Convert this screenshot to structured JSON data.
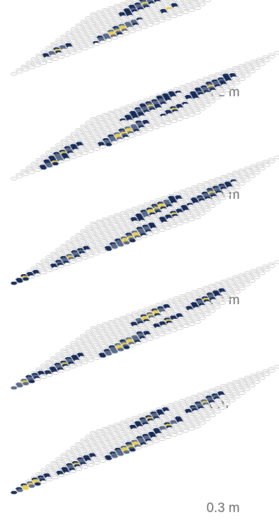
{
  "colors": {
    "empty_fill": "#ffffff",
    "empty_stroke": "#9a9a9a",
    "low": "#162a57",
    "mid": "#5b6a86",
    "high": "#e6cf5a",
    "label_text": "#666666"
  },
  "layers": [
    {
      "label": "3.1 m",
      "clusters": [
        {
          "r": 4,
          "c": 12,
          "rad": 3.0,
          "hr": 0.0,
          "mr": 1.4
        },
        {
          "r": 5,
          "c": 23,
          "rad": 3.2,
          "hr": 1.0,
          "mr": 2.0
        },
        {
          "r": 11,
          "c": 22,
          "rad": 1.3,
          "hr": 0.0,
          "mr": 0.0
        },
        {
          "r": 12,
          "c": 4,
          "rad": 1.8,
          "hr": 0.0,
          "mr": 1.0
        },
        {
          "r": 13,
          "c": 15,
          "rad": 2.8,
          "hr": 1.2,
          "mr": 2.2
        }
      ]
    },
    {
      "label": "2.4 m",
      "clusters": [
        {
          "r": 4,
          "c": 13,
          "rad": 3.4,
          "hr": 0.0,
          "mr": 1.8
        },
        {
          "r": 5,
          "c": 24,
          "rad": 3.0,
          "hr": 0.0,
          "mr": 1.5
        },
        {
          "r": 10,
          "c": 22,
          "rad": 1.6,
          "hr": 0.0,
          "mr": 0.0
        },
        {
          "r": 12,
          "c": 5,
          "rad": 2.6,
          "hr": 0.0,
          "mr": 1.2
        },
        {
          "r": 13,
          "c": 16,
          "rad": 3.0,
          "hr": 1.2,
          "mr": 2.2
        },
        {
          "r": 15,
          "c": 6,
          "rad": 2.0,
          "hr": 0.0,
          "mr": 1.0
        }
      ]
    },
    {
      "label": "1.7 m",
      "clusters": [
        {
          "r": 4,
          "c": 14,
          "rad": 3.0,
          "hr": 1.0,
          "mr": 2.0
        },
        {
          "r": 6,
          "c": 25,
          "rad": 2.8,
          "hr": 0.0,
          "mr": 1.6
        },
        {
          "r": 10,
          "c": 22,
          "rad": 2.0,
          "hr": 0.0,
          "mr": 0.0
        },
        {
          "r": 13,
          "c": 7,
          "rad": 2.6,
          "hr": 0.0,
          "mr": 1.4
        },
        {
          "r": 14,
          "c": 18,
          "rad": 3.2,
          "hr": 1.2,
          "mr": 2.2
        },
        {
          "r": 15,
          "c": 1,
          "rad": 1.8,
          "hr": 0.0,
          "mr": 0.0
        }
      ]
    },
    {
      "label": "1 m",
      "clusters": [
        {
          "r": 4,
          "c": 13,
          "rad": 2.6,
          "hr": 1.0,
          "mr": 1.8
        },
        {
          "r": 6,
          "c": 24,
          "rad": 2.4,
          "hr": 0.0,
          "mr": 1.2
        },
        {
          "r": 10,
          "c": 21,
          "rad": 1.8,
          "hr": 0.0,
          "mr": 0.0
        },
        {
          "r": 13,
          "c": 6,
          "rad": 2.4,
          "hr": 0.0,
          "mr": 1.2
        },
        {
          "r": 14,
          "c": 17,
          "rad": 3.0,
          "hr": 1.2,
          "mr": 2.4
        },
        {
          "r": 15,
          "c": 1,
          "rad": 2.2,
          "hr": 0.0,
          "mr": 1.4
        }
      ]
    },
    {
      "label": "0.3 m",
      "clusters": [
        {
          "r": 3,
          "c": 12,
          "rad": 2.2,
          "hr": 0.0,
          "mr": 1.2
        },
        {
          "r": 5,
          "c": 23,
          "rad": 2.4,
          "hr": 0.0,
          "mr": 1.4
        },
        {
          "r": 10,
          "c": 21,
          "rad": 2.0,
          "hr": 0.0,
          "mr": 1.0
        },
        {
          "r": 13,
          "c": 8,
          "rad": 2.4,
          "hr": 0.0,
          "mr": 1.3
        },
        {
          "r": 14,
          "c": 18,
          "rad": 3.2,
          "hr": 1.2,
          "mr": 2.3
        },
        {
          "r": 15,
          "c": 2,
          "rad": 2.2,
          "hr": 1.0,
          "mr": 1.6
        }
      ]
    }
  ]
}
